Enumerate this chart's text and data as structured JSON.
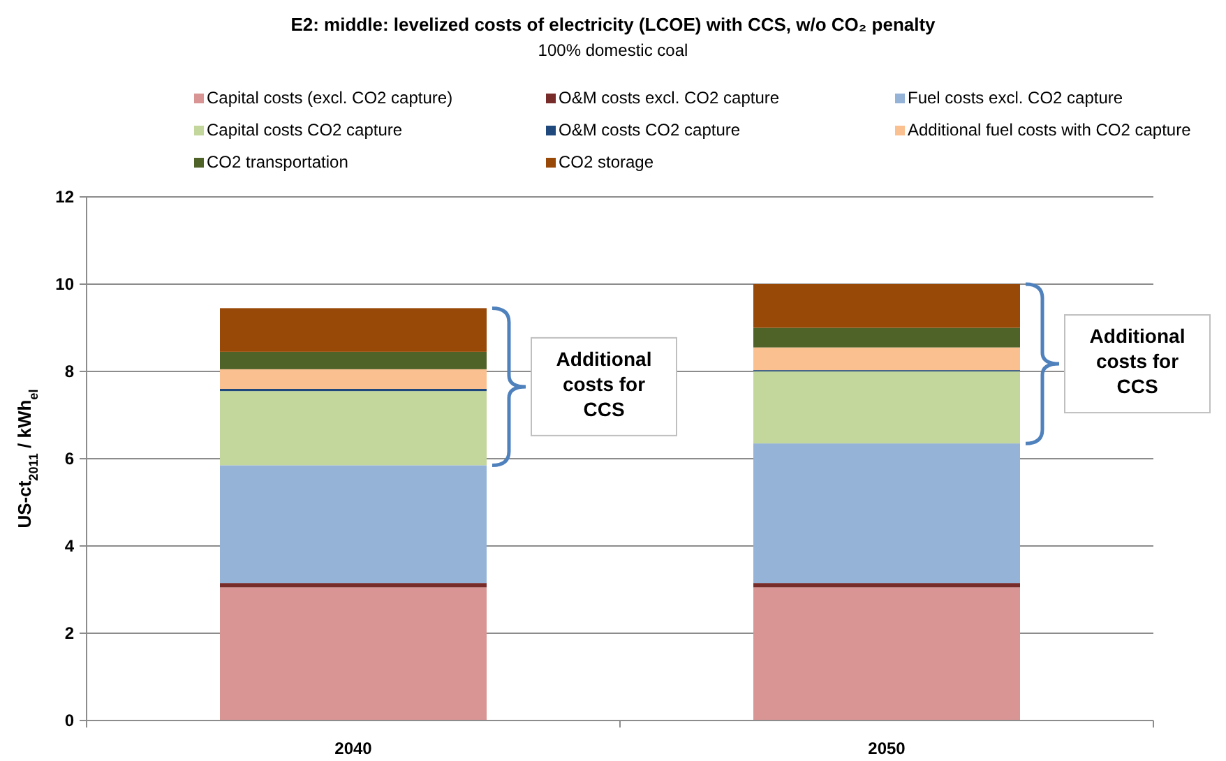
{
  "chart_data": {
    "type": "bar",
    "stacked": true,
    "title": "E2: middle: levelized costs of electricity (LCOE) with CCS, w/o CO₂ penalty",
    "subtitle": "100% domestic coal",
    "ylabel": "US-ct$_{2011}$ / kWh$_{el}$",
    "categories": [
      "2040",
      "2050"
    ],
    "series": [
      {
        "name": "Capital costs (excl. CO2 capture)",
        "color": "#d99594",
        "values": [
          3.05,
          3.05
        ]
      },
      {
        "name": "O&M costs excl. CO2 capture",
        "color": "#772c2a",
        "values": [
          0.1,
          0.1
        ]
      },
      {
        "name": "Fuel costs excl. CO2 capture",
        "color": "#95b3d7",
        "values": [
          2.7,
          3.2
        ]
      },
      {
        "name": "Capital costs CO2 capture",
        "color": "#c3d69b",
        "values": [
          1.7,
          1.65
        ]
      },
      {
        "name": "O&M costs CO2 capture",
        "color": "#1f497d",
        "values": [
          0.05,
          0.03
        ]
      },
      {
        "name": "Additional fuel costs with CO2 capture",
        "color": "#fac090",
        "values": [
          0.45,
          0.52
        ]
      },
      {
        "name": "CO2 transportation",
        "color": "#4f6228",
        "values": [
          0.4,
          0.45
        ]
      },
      {
        "name": "CO2 storage",
        "color": "#984807",
        "values": [
          1.0,
          1.0
        ]
      }
    ],
    "ylim": [
      0,
      12
    ],
    "yticks": [
      0,
      2,
      4,
      6,
      8,
      10,
      12
    ],
    "grid": "y",
    "legend": "top",
    "annotations": [
      "Additional costs for CCS",
      "Additional costs for CCS"
    ]
  }
}
